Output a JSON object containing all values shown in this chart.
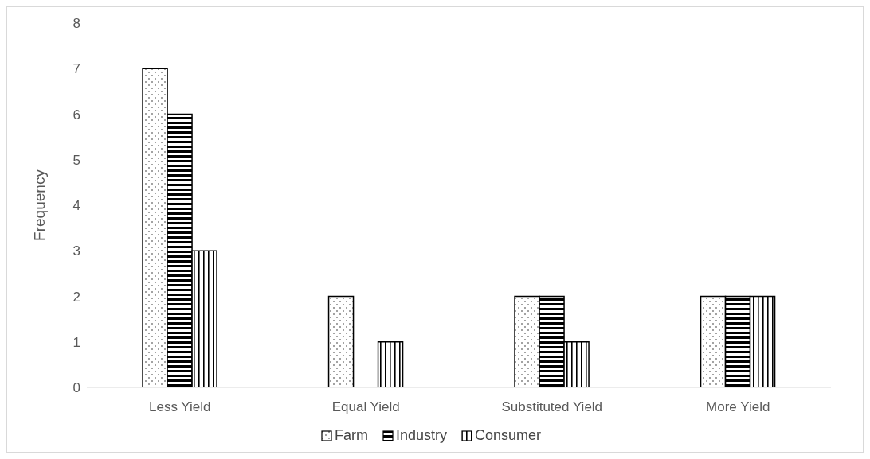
{
  "chart_data": {
    "type": "bar",
    "ylabel": "Frequency",
    "categories": [
      "Less Yield",
      "Equal Yield",
      "Substituted Yield",
      "More Yield"
    ],
    "series": [
      {
        "name": "Farm",
        "color": "#000000",
        "values": [
          7,
          2,
          2,
          2
        ]
      },
      {
        "name": "Industry",
        "color": "#000000",
        "values": [
          6,
          0,
          2,
          2
        ]
      },
      {
        "name": "Consumer",
        "color": "#000000",
        "values": [
          3,
          1,
          1,
          2
        ]
      }
    ],
    "ylim": [
      0,
      8
    ],
    "yticks": [
      0,
      1,
      2,
      3,
      4,
      5,
      6,
      7,
      8
    ],
    "grid": false,
    "legend": "bottom"
  }
}
